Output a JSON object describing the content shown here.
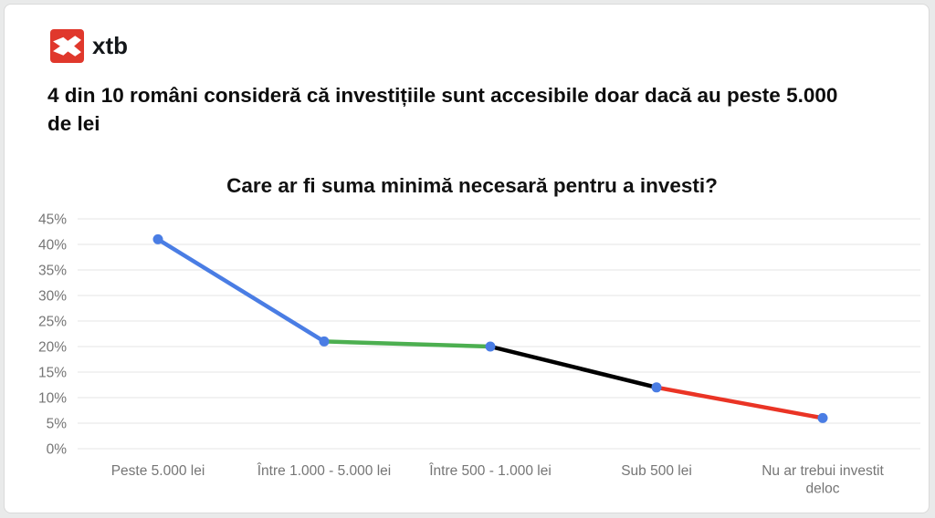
{
  "brand": {
    "logo_text": "xtb",
    "logo_color": "#e0382c"
  },
  "headline": "4 din 10 români consideră că investițiile sunt accesibile doar dacă au peste 5.000 de lei",
  "chart_data": {
    "type": "line",
    "title": "Care ar fi suma minimă necesară pentru a investi?",
    "categories": [
      "Peste 5.000 lei",
      "Între 1.000 - 5.000 lei",
      "Între 500 - 1.000 lei",
      "Sub 500 lei",
      "Nu ar trebui investit deloc"
    ],
    "values": [
      41,
      21,
      20,
      12,
      6
    ],
    "unit": "%",
    "xlabel": "",
    "ylabel": "",
    "ylim": [
      0,
      45
    ],
    "ytick_step": 5,
    "ytick_labels": [
      "0%",
      "5%",
      "10%",
      "15%",
      "20%",
      "25%",
      "30%",
      "35%",
      "40%",
      "45%"
    ],
    "grid": true,
    "legend": "none",
    "colors": {
      "segments": [
        "#4a7de4",
        "#4caf50",
        "#000000",
        "#ea3425"
      ],
      "points": "#4a7de4",
      "gridline": "#e4e4e4",
      "axis_text": "#757575"
    }
  }
}
